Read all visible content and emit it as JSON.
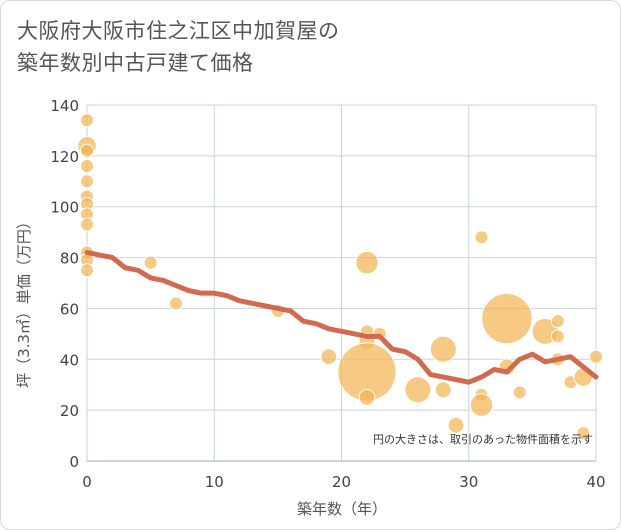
{
  "title": "大阪府大阪市住之江区中加賀屋の\n築年数別中古戸建て価格",
  "colors": {
    "bubble": "#f2b451",
    "line": "#d26a4f",
    "grid": "#c9d3df",
    "background": "#ffffff"
  },
  "chart_data": {
    "type": "scatter",
    "title": "大阪府大阪市住之江区中加賀屋の築年数別中古戸建て価格",
    "xlabel": "築年数（年）",
    "ylabel": "坪（3.3㎡）単価（万円）",
    "xlim": [
      0,
      40
    ],
    "ylim": [
      0,
      140
    ],
    "xticks": [
      0,
      10,
      20,
      30,
      40
    ],
    "yticks": [
      0,
      20,
      40,
      60,
      80,
      100,
      120,
      140
    ],
    "grid": true,
    "note": "円の大きさは、取引のあった物件面積を示す",
    "bubbles": [
      {
        "x": 0,
        "y": 134,
        "size": 1
      },
      {
        "x": 0,
        "y": 124,
        "size": 2
      },
      {
        "x": 0,
        "y": 122,
        "size": 1
      },
      {
        "x": 0,
        "y": 116,
        "size": 1
      },
      {
        "x": 0,
        "y": 110,
        "size": 1
      },
      {
        "x": 0,
        "y": 104,
        "size": 1
      },
      {
        "x": 0,
        "y": 101,
        "size": 1
      },
      {
        "x": 0,
        "y": 97,
        "size": 1
      },
      {
        "x": 0,
        "y": 93,
        "size": 1
      },
      {
        "x": 0,
        "y": 82,
        "size": 1
      },
      {
        "x": 0,
        "y": 79,
        "size": 1
      },
      {
        "x": 0,
        "y": 75,
        "size": 1
      },
      {
        "x": 5,
        "y": 78,
        "size": 1
      },
      {
        "x": 7,
        "y": 62,
        "size": 1
      },
      {
        "x": 15,
        "y": 59,
        "size": 1
      },
      {
        "x": 19,
        "y": 41,
        "size": 1.5
      },
      {
        "x": 22,
        "y": 78,
        "size": 3
      },
      {
        "x": 22,
        "y": 51,
        "size": 1
      },
      {
        "x": 22,
        "y": 47,
        "size": 1.5
      },
      {
        "x": 22,
        "y": 35,
        "size": 20
      },
      {
        "x": 22,
        "y": 25,
        "size": 1.5
      },
      {
        "x": 23,
        "y": 50,
        "size": 1
      },
      {
        "x": 26,
        "y": 28,
        "size": 4
      },
      {
        "x": 28,
        "y": 44,
        "size": 4
      },
      {
        "x": 28,
        "y": 28,
        "size": 1.5
      },
      {
        "x": 29,
        "y": 14,
        "size": 1.5
      },
      {
        "x": 31,
        "y": 88,
        "size": 1
      },
      {
        "x": 31,
        "y": 26,
        "size": 1
      },
      {
        "x": 31,
        "y": 22,
        "size": 3
      },
      {
        "x": 33,
        "y": 56,
        "size": 15
      },
      {
        "x": 33,
        "y": 37,
        "size": 1.5
      },
      {
        "x": 34,
        "y": 27,
        "size": 1
      },
      {
        "x": 36,
        "y": 51,
        "size": 4
      },
      {
        "x": 37,
        "y": 55,
        "size": 1
      },
      {
        "x": 37,
        "y": 49,
        "size": 1
      },
      {
        "x": 37,
        "y": 40,
        "size": 1
      },
      {
        "x": 38,
        "y": 31,
        "size": 1
      },
      {
        "x": 39,
        "y": 33,
        "size": 2
      },
      {
        "x": 39,
        "y": 11,
        "size": 1
      },
      {
        "x": 40,
        "y": 41,
        "size": 1
      }
    ],
    "series": [
      {
        "type": "line",
        "x": [
          0,
          1,
          2,
          3,
          4,
          5,
          6,
          7,
          8,
          9,
          10,
          11,
          12,
          13,
          14,
          15,
          16,
          17,
          18,
          19,
          20,
          21,
          22,
          23,
          24,
          25,
          26,
          27,
          28,
          29,
          30,
          31,
          32,
          33,
          34,
          35,
          36,
          37,
          38,
          39,
          40
        ],
        "y": [
          82,
          81,
          80,
          76,
          75,
          72,
          71,
          69,
          67,
          66,
          66,
          65,
          63,
          62,
          61,
          60,
          59,
          55,
          54,
          52,
          51,
          50,
          49,
          49,
          44,
          43,
          40,
          34,
          33,
          32,
          31,
          33,
          36,
          35,
          40,
          42,
          39,
          40,
          41,
          37,
          33
        ]
      }
    ]
  }
}
